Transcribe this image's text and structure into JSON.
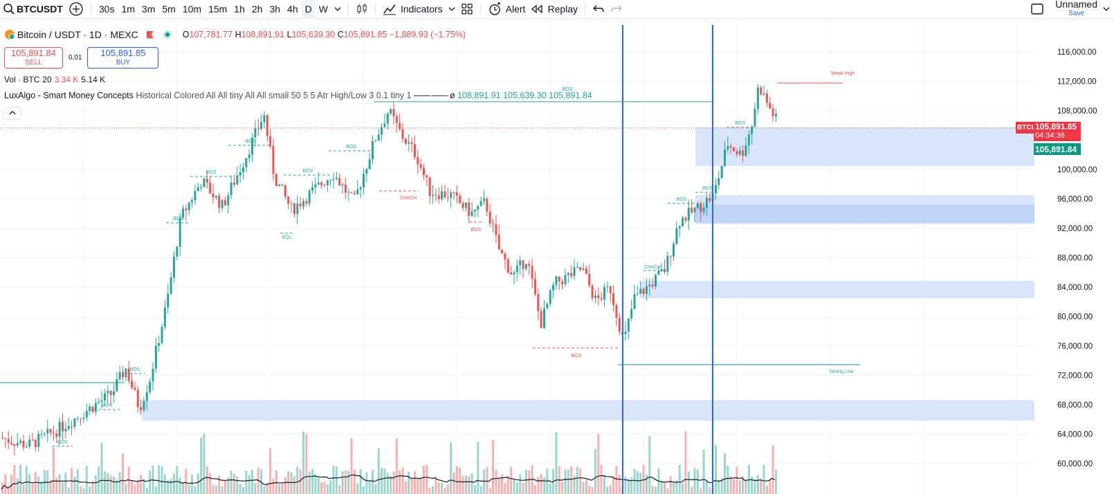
{
  "toolbar": {
    "symbol": "BTCUSDT",
    "intervals": [
      "30s",
      "1m",
      "3m",
      "5m",
      "10m",
      "15m",
      "1h",
      "2h",
      "3h",
      "4h",
      "D",
      "W"
    ],
    "active_interval": "D",
    "indicators_label": "Indicators",
    "alert_label": "Alert",
    "replay_label": "Replay",
    "layout_name": "Unnamed",
    "save_label": "Save"
  },
  "legend": {
    "title": "Bitcoin / USDT · 1D · MEXC",
    "o_label": "O",
    "o_value": "107,781.77",
    "h_label": "H",
    "h_value": "108,891.91",
    "l_label": "L",
    "l_value": "105,639.30",
    "c_label": "C",
    "c_value": "105,891.85",
    "change": "−1,889.93 (−1.75%)"
  },
  "trade": {
    "sell_price": "105,891.84",
    "sell_label": "SELL",
    "spread": "0.01",
    "buy_price": "105,891.85",
    "buy_label": "BUY"
  },
  "volume": {
    "label": "Vol · BTC",
    "length": "20",
    "value1": "3.34 K",
    "value2": "5.14 K"
  },
  "indicator": {
    "name": "LuxAlgo - Smart Money Concepts",
    "params": "Historical Colored All All tiny All All small 50 5 5 Atr High/Low 3 0.1 tiny 1",
    "phi": "ø",
    "v1": "108,891.91",
    "v2": "105,639.30",
    "v3": "105,891.84"
  },
  "price_axis": [
    "116,000.00",
    "112,000.00",
    "108,000.00",
    "100,000.00",
    "96,000.00",
    "92,000.00",
    "88,000.00",
    "84,000.00",
    "80,000.00",
    "76,000.00",
    "72,000.00",
    "68,000.00",
    "64,000.00",
    "60,000.00"
  ],
  "price_tags": {
    "symbol": "BTCUSDT",
    "last": "105,891.85",
    "countdown": "04:34:36",
    "bid": "105,891.84"
  },
  "annotations": {
    "bos": "BOS",
    "choch": "CHoCH",
    "eql": "EQL",
    "weak_high": "Weak High",
    "strong_low": "Strong Low"
  },
  "colors": {
    "up": "#26a69a",
    "down": "#ef5350",
    "zone": "#d1e0fb",
    "vline": "#2962ff"
  },
  "chart_data": {
    "type": "candlestick",
    "series": [
      {
        "name": "Bitcoin / USDT · 1D · MEXC"
      }
    ],
    "last_close": 105891.85,
    "y_ticks": [
      116000,
      112000,
      108000,
      100000,
      96000,
      92000,
      88000,
      84000,
      80000,
      76000,
      72000,
      68000,
      64000,
      60000
    ],
    "volume_ma_length": 20
  }
}
